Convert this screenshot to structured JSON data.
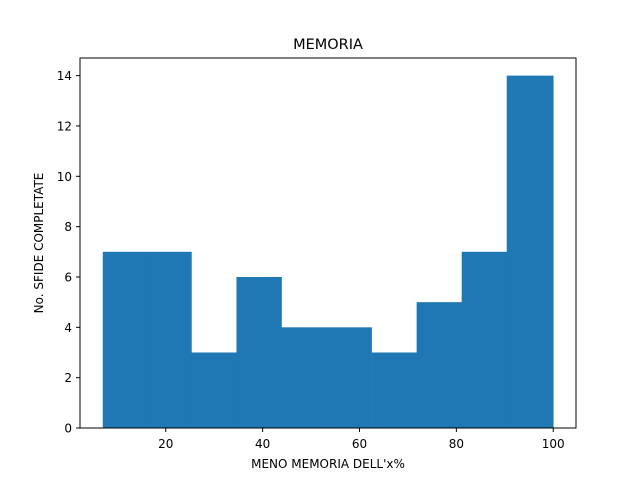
{
  "chart_data": {
    "type": "bar",
    "title": "MEMORIA",
    "xlabel": "MENO MEMORIA DELL'x%",
    "ylabel": "No. SFIDE COMPLETATE",
    "bin_edges": [
      7,
      16,
      25.3,
      34.6,
      43.9,
      53.2,
      62.5,
      71.8,
      81.1,
      90.4,
      100
    ],
    "values": [
      7,
      7,
      3,
      6,
      4,
      4,
      3,
      5,
      7,
      14
    ],
    "xlim": [
      2.3,
      104.7
    ],
    "ylim": [
      0,
      14.7
    ],
    "xticks": [
      20,
      40,
      60,
      80,
      100
    ],
    "yticks": [
      0,
      2,
      4,
      6,
      8,
      10,
      12,
      14
    ],
    "grid": false,
    "bar_color": "#1f77b4"
  }
}
